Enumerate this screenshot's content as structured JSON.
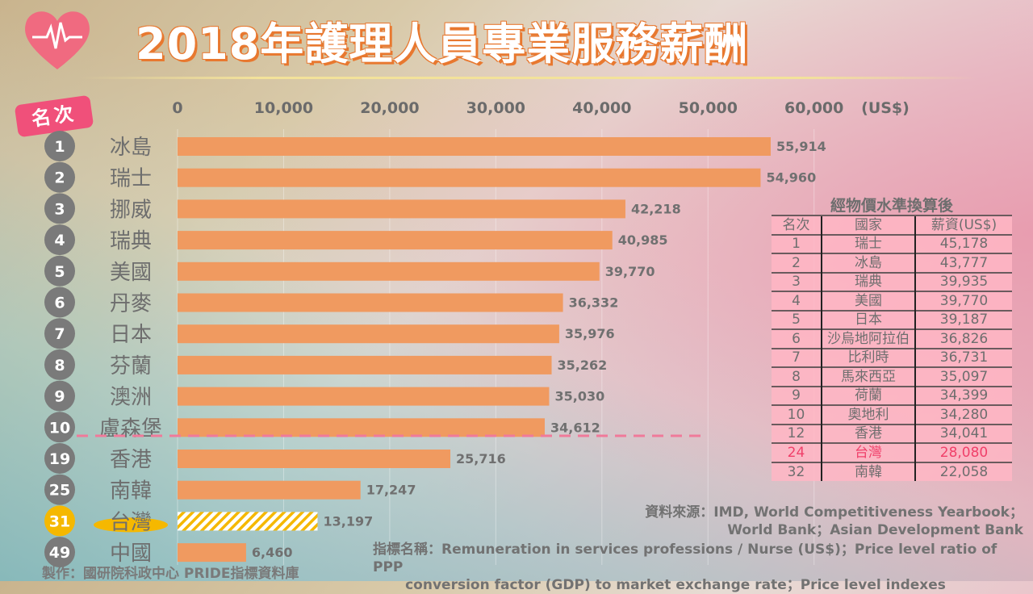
{
  "header": {
    "title": "2018年護理人員專業服務薪酬",
    "rank_label": "名次"
  },
  "chart_data": {
    "type": "bar",
    "orientation": "horizontal",
    "title": "2018年護理人員專業服務薪酬",
    "unit_label": "(US$)",
    "xlim": [
      0,
      60000
    ],
    "ticks": [
      "0",
      "10,000",
      "20,000",
      "30,000",
      "40,000",
      "50,000",
      "60,000"
    ],
    "tick_values": [
      0,
      10000,
      20000,
      30000,
      40000,
      50000,
      60000
    ],
    "ranks": [
      "1",
      "2",
      "3",
      "4",
      "5",
      "6",
      "7",
      "8",
      "9",
      "10",
      "19",
      "25",
      "31",
      "49"
    ],
    "categories": [
      "冰島",
      "瑞士",
      "挪威",
      "瑞典",
      "美國",
      "丹麥",
      "日本",
      "芬蘭",
      "澳洲",
      "盧森堡",
      "香港",
      "南韓",
      "台灣",
      "中國"
    ],
    "values": [
      55914,
      54960,
      42218,
      40985,
      39770,
      36332,
      35976,
      35262,
      35030,
      34612,
      25716,
      17247,
      13197,
      6460
    ],
    "value_labels": [
      "55,914",
      "54,960",
      "42,218",
      "40,985",
      "39,770",
      "36,332",
      "35,976",
      "35,262",
      "35,030",
      "34,612",
      "25,716",
      "17,247",
      "13,197",
      "6,460"
    ],
    "highlight_index": 12,
    "colors": {
      "bar": "#f09a60",
      "highlight": "#f5b800",
      "highlight_text": "#f0406a",
      "rank_circle": "#7a7a7a"
    }
  },
  "ppp_table": {
    "title": "經物價水準換算後",
    "headers": [
      "名次",
      "國家",
      "薪資(US$)"
    ],
    "rows": [
      [
        "1",
        "瑞士",
        "45,178"
      ],
      [
        "2",
        "冰島",
        "43,777"
      ],
      [
        "3",
        "瑞典",
        "39,935"
      ],
      [
        "4",
        "美國",
        "39,770"
      ],
      [
        "5",
        "日本",
        "39,187"
      ],
      [
        "6",
        "沙烏地阿拉伯",
        "36,826"
      ],
      [
        "7",
        "比利時",
        "36,731"
      ],
      [
        "8",
        "馬來西亞",
        "35,097"
      ],
      [
        "9",
        "荷蘭",
        "34,399"
      ],
      [
        "10",
        "奧地利",
        "34,280"
      ],
      [
        "12",
        "香港",
        "34,041"
      ],
      [
        "24",
        "台灣",
        "28,080"
      ],
      [
        "32",
        "南韓",
        "22,058"
      ]
    ],
    "highlight_row": 11
  },
  "footer": {
    "source_line1": "資料來源：IMD, World Competitiveness Yearbook；",
    "source_line2": "World Bank；Asian Development Bank",
    "indicator_line1": "指標名稱：Remuneration in services professions / Nurse (US$)；Price level ratio of PPP",
    "indicator_line2": "conversion factor (GDP) to market exchange rate；Price level indexes",
    "maker": "製作：國研院科政中心  PRIDE指標資料庫"
  }
}
